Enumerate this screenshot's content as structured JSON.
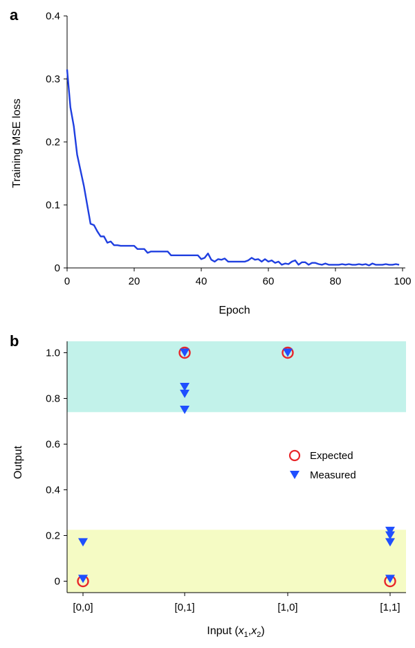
{
  "colors": {
    "line": "#1f3fe0",
    "marker_measured": "#1f4fff",
    "marker_expected": "#e8262a",
    "band_high": "#c2f2ea",
    "band_low": "#f5fbc4",
    "axis": "#000000"
  },
  "chart_data": [
    {
      "panel": "a",
      "type": "line",
      "xlabel": "Epoch",
      "ylabel": "Training MSE loss",
      "xlim": [
        0,
        100
      ],
      "ylim": [
        0,
        0.4
      ],
      "xticks": [
        0,
        20,
        40,
        60,
        80,
        100
      ],
      "xtick_labels": [
        "0",
        "20",
        "40",
        "60",
        "80",
        "100"
      ],
      "yticks": [
        0,
        0.1,
        0.2,
        0.3,
        0.4
      ],
      "ytick_labels": [
        "0",
        "0.1",
        "0.2",
        "0.3",
        "0.4"
      ],
      "grid": false,
      "series": [
        {
          "x": [
            0,
            1,
            2,
            3,
            4,
            5,
            6,
            7,
            8,
            9,
            10,
            11,
            12,
            13,
            14,
            15,
            16,
            17,
            18,
            19,
            20,
            21,
            22,
            23,
            24,
            25,
            26,
            27,
            28,
            29,
            30,
            31,
            32,
            33,
            34,
            35,
            36,
            37,
            38,
            39,
            40,
            41,
            42,
            43,
            44,
            45,
            46,
            47,
            48,
            49,
            50,
            51,
            52,
            53,
            54,
            55,
            56,
            57,
            58,
            59,
            60,
            61,
            62,
            63,
            64,
            65,
            66,
            67,
            68,
            69,
            70,
            71,
            72,
            73,
            74,
            75,
            76,
            77,
            78,
            79,
            80,
            81,
            82,
            83,
            84,
            85,
            86,
            87,
            88,
            89,
            90,
            91,
            92,
            93,
            94,
            95,
            96,
            97,
            98,
            99
          ],
          "y": [
            0.315,
            0.255,
            0.225,
            0.18,
            0.155,
            0.13,
            0.1,
            0.07,
            0.068,
            0.058,
            0.05,
            0.05,
            0.04,
            0.042,
            0.036,
            0.036,
            0.035,
            0.035,
            0.035,
            0.035,
            0.035,
            0.03,
            0.03,
            0.03,
            0.024,
            0.026,
            0.026,
            0.026,
            0.026,
            0.026,
            0.026,
            0.02,
            0.02,
            0.02,
            0.02,
            0.02,
            0.02,
            0.02,
            0.02,
            0.02,
            0.014,
            0.016,
            0.023,
            0.013,
            0.01,
            0.014,
            0.013,
            0.015,
            0.01,
            0.01,
            0.01,
            0.01,
            0.01,
            0.01,
            0.012,
            0.016,
            0.013,
            0.014,
            0.01,
            0.014,
            0.01,
            0.012,
            0.008,
            0.01,
            0.005,
            0.007,
            0.006,
            0.01,
            0.012,
            0.005,
            0.009,
            0.009,
            0.005,
            0.008,
            0.008,
            0.006,
            0.005,
            0.007,
            0.005,
            0.005,
            0.005,
            0.005,
            0.006,
            0.005,
            0.006,
            0.005,
            0.005,
            0.006,
            0.005,
            0.006,
            0.004,
            0.007,
            0.005,
            0.005,
            0.005,
            0.006,
            0.005,
            0.005,
            0.006,
            0.005
          ]
        }
      ]
    },
    {
      "panel": "b",
      "type": "scatter",
      "xlabel_parts": [
        "Input (",
        "x",
        "1",
        ",",
        "x",
        "2",
        ")"
      ],
      "ylabel": "Output",
      "ylim": [
        -0.05,
        1.05
      ],
      "categories": [
        "[0,0]",
        "[0,1]",
        "[1,0]",
        "[1,1]"
      ],
      "yticks": [
        0,
        0.2,
        0.4,
        0.6,
        0.8,
        1.0
      ],
      "ytick_labels": [
        "0",
        "0.2",
        "0.4",
        "0.6",
        "0.8",
        "1.0"
      ],
      "bands": [
        {
          "from": 0.74,
          "to": 1.05,
          "color": "#c2f2ea"
        },
        {
          "from": -0.05,
          "to": 0.225,
          "color": "#f5fbc4"
        }
      ],
      "legend_position": "right-middle",
      "series": [
        {
          "name": "Expected",
          "marker": "circle",
          "points": [
            {
              "x": "[0,0]",
              "y": 0
            },
            {
              "x": "[0,1]",
              "y": 1
            },
            {
              "x": "[1,0]",
              "y": 1
            },
            {
              "x": "[1,1]",
              "y": 0
            }
          ]
        },
        {
          "name": "Measured",
          "marker": "triangle-down",
          "points": [
            {
              "x": "[0,0]",
              "y": 0.17
            },
            {
              "x": "[0,0]",
              "y": 0.01
            },
            {
              "x": "[0,1]",
              "y": 1.0
            },
            {
              "x": "[0,1]",
              "y": 0.85
            },
            {
              "x": "[0,1]",
              "y": 0.82
            },
            {
              "x": "[0,1]",
              "y": 0.75
            },
            {
              "x": "[1,0]",
              "y": 1.0
            },
            {
              "x": "[1,1]",
              "y": 0.22
            },
            {
              "x": "[1,1]",
              "y": 0.2
            },
            {
              "x": "[1,1]",
              "y": 0.17
            },
            {
              "x": "[1,1]",
              "y": 0.01
            }
          ]
        }
      ]
    }
  ]
}
